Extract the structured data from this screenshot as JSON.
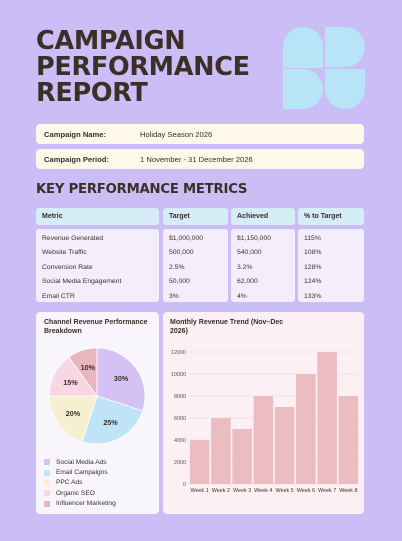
{
  "header": {
    "title_lines": [
      "CAMPAIGN",
      "PERFORMANCE",
      "REPORT"
    ]
  },
  "campaign": {
    "name_label": "Campaign Name:",
    "name_value": "Holiday Season 2026",
    "period_label": "Campaign Period:",
    "period_value": "1 November - 31 December 2026"
  },
  "kpi": {
    "section_title": "KEY PERFORMANCE METRICS",
    "headers": [
      "Metric",
      "Target",
      "Achieved",
      "% to Target"
    ],
    "rows": [
      [
        "Revenue Generated",
        "$1,000,000",
        "$1,150,000",
        "115%"
      ],
      [
        "Website Traffic",
        "500,000",
        "540,000",
        "108%"
      ],
      [
        "Conversion Rate",
        "2.5%",
        "3.2%",
        "128%"
      ],
      [
        "Social Media Engagement",
        "50,000",
        "62,000",
        "124%"
      ],
      [
        "Email CTR",
        "3%",
        "4%",
        "133%"
      ]
    ]
  },
  "colors": {
    "background": "#cbbdf6",
    "bar": "#ebbcc0",
    "logo": "#b8e4f7"
  },
  "chart_data": [
    {
      "type": "pie",
      "title": "Channel Revenue Performance Breakdown",
      "categories": [
        "Social Media Ads",
        "Email Campaigns",
        "PPC Ads",
        "Organic SEO",
        "Influencer Marketing"
      ],
      "values": [
        30,
        25,
        20,
        15,
        10
      ],
      "labels": [
        "30%",
        "25%",
        "20%",
        "15%",
        "10%"
      ],
      "colors": [
        "#d3c2f3",
        "#bfe4f5",
        "#f7efd2",
        "#f8d7e3",
        "#e8b6bd"
      ],
      "legend": "bottom-left"
    },
    {
      "type": "bar",
      "title": "Monthly Revenue Trend (Nov–Dec 2026)",
      "categories": [
        "Week 1",
        "Week 2",
        "Week 3",
        "Week 4",
        "Week 5",
        "Week 6",
        "Week 7",
        "Week 8"
      ],
      "values": [
        4000,
        6000,
        5000,
        8000,
        7000,
        10000,
        12000,
        8000
      ],
      "ylim": [
        0,
        12000
      ],
      "yticks": [
        0,
        2000,
        4000,
        6000,
        8000,
        10000,
        12000
      ],
      "grid": true
    }
  ]
}
